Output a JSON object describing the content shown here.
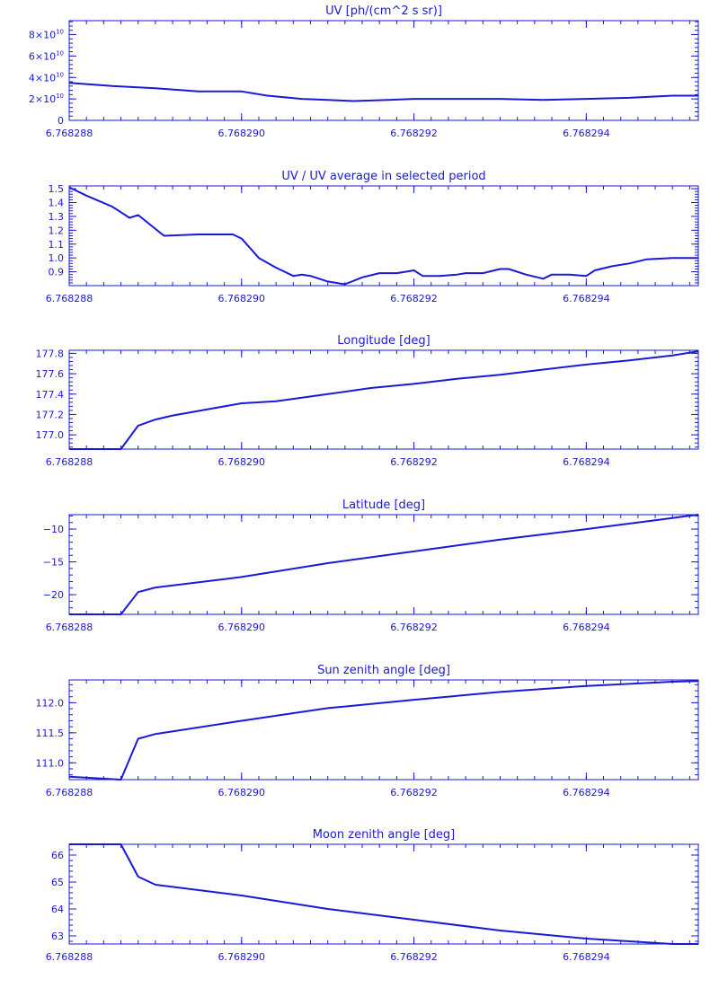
{
  "figure": {
    "color": "#1a1ad6",
    "background": "#ffffff"
  },
  "chart_data": [
    {
      "type": "line",
      "title": "UV [ph/(cm^2 s sr)]",
      "xlabel": "",
      "ylabel": "",
      "xlim": [
        6.768288,
        6.7682953
      ],
      "ylim": [
        0,
        93000000000.0
      ],
      "xticks": [
        {
          "value": 6.768288,
          "label": "6.768288"
        },
        {
          "value": 6.76829,
          "label": "6.768290"
        },
        {
          "value": 6.768292,
          "label": "6.768292"
        },
        {
          "value": 6.768294,
          "label": "6.768294"
        }
      ],
      "yticks": [
        {
          "value": 0,
          "mantissa": "0",
          "exponent": ""
        },
        {
          "value": 20000000000.0,
          "mantissa": "2×10",
          "exponent": "10"
        },
        {
          "value": 40000000000.0,
          "mantissa": "4×10",
          "exponent": "10"
        },
        {
          "value": 60000000000.0,
          "mantissa": "6×10",
          "exponent": "10"
        },
        {
          "value": 80000000000.0,
          "mantissa": "8×10",
          "exponent": "10"
        }
      ],
      "series": [
        {
          "x": [
            6.768288,
            6.7682885,
            6.768289,
            6.7682895,
            6.76829,
            6.7682903,
            6.7682907,
            6.768291,
            6.7682913,
            6.7682917,
            6.768292,
            6.7682925,
            6.768293,
            6.7682935,
            6.768294,
            6.7682945,
            6.768295,
            6.7682953
          ],
          "y": [
            35000000000.0,
            32000000000.0,
            30000000000.0,
            27000000000.0,
            27000000000.0,
            23000000000.0,
            20000000000.0,
            19000000000.0,
            18000000000.0,
            19000000000.0,
            20000000000.0,
            20000000000.0,
            20000000000.0,
            19000000000.0,
            20000000000.0,
            21000000000.0,
            23000000000.0,
            23000000000.0
          ]
        }
      ]
    },
    {
      "type": "line",
      "title": "UV / UV average in selected period",
      "xlabel": "",
      "ylabel": "",
      "xlim": [
        6.768288,
        6.7682953
      ],
      "ylim": [
        0.8,
        1.52
      ],
      "xticks": [
        {
          "value": 6.768288,
          "label": "6.768288"
        },
        {
          "value": 6.76829,
          "label": "6.768290"
        },
        {
          "value": 6.768292,
          "label": "6.768292"
        },
        {
          "value": 6.768294,
          "label": "6.768294"
        }
      ],
      "yticks": [
        {
          "value": 0.9,
          "label": "0.9"
        },
        {
          "value": 1.0,
          "label": "1.0"
        },
        {
          "value": 1.1,
          "label": "1.1"
        },
        {
          "value": 1.2,
          "label": "1.2"
        },
        {
          "value": 1.3,
          "label": "1.3"
        },
        {
          "value": 1.4,
          "label": "1.4"
        },
        {
          "value": 1.5,
          "label": "1.5"
        }
      ],
      "series": [
        {
          "x": [
            6.768288,
            6.7682882,
            6.7682885,
            6.7682887,
            6.7682888,
            6.7682891,
            6.7682895,
            6.7682899,
            6.76829,
            6.7682902,
            6.7682904,
            6.7682906,
            6.7682907,
            6.7682908,
            6.768291,
            6.7682912,
            6.7682914,
            6.7682916,
            6.7682918,
            6.7682919,
            6.768292,
            6.7682921,
            6.7682923,
            6.7682925,
            6.7682926,
            6.7682928,
            6.768293,
            6.7682931,
            6.7682933,
            6.7682935,
            6.7682936,
            6.7682938,
            6.768294,
            6.7682941,
            6.7682943,
            6.7682945,
            6.7682947,
            6.768295,
            6.7682953
          ],
          "y": [
            1.51,
            1.45,
            1.37,
            1.29,
            1.31,
            1.16,
            1.17,
            1.17,
            1.14,
            1.0,
            0.93,
            0.87,
            0.88,
            0.87,
            0.83,
            0.81,
            0.86,
            0.89,
            0.89,
            0.9,
            0.91,
            0.87,
            0.87,
            0.88,
            0.89,
            0.89,
            0.92,
            0.92,
            0.88,
            0.85,
            0.88,
            0.88,
            0.87,
            0.91,
            0.94,
            0.96,
            0.99,
            1.0,
            1.0
          ]
        }
      ]
    },
    {
      "type": "line",
      "title": "Longitude [deg]",
      "xlabel": "",
      "ylabel": "",
      "xlim": [
        6.768288,
        6.7682953
      ],
      "ylim": [
        176.86,
        177.83
      ],
      "xticks": [
        {
          "value": 6.768288,
          "label": "6.768288"
        },
        {
          "value": 6.76829,
          "label": "6.768290"
        },
        {
          "value": 6.768292,
          "label": "6.768292"
        },
        {
          "value": 6.768294,
          "label": "6.768294"
        }
      ],
      "yticks": [
        {
          "value": 177.0,
          "label": "177.0"
        },
        {
          "value": 177.2,
          "label": "177.2"
        },
        {
          "value": 177.4,
          "label": "177.4"
        },
        {
          "value": 177.6,
          "label": "177.6"
        },
        {
          "value": 177.8,
          "label": "177.8"
        }
      ],
      "series": [
        {
          "x": [
            6.768288,
            6.7682886,
            6.7682888,
            6.768289,
            6.7682892,
            6.76829,
            6.7682904,
            6.768291,
            6.7682915,
            6.768292,
            6.7682925,
            6.768293,
            6.7682935,
            6.768294,
            6.7682945,
            6.768295,
            6.7682953
          ],
          "y": [
            176.86,
            176.86,
            177.09,
            177.15,
            177.19,
            177.31,
            177.33,
            177.4,
            177.46,
            177.5,
            177.55,
            177.59,
            177.64,
            177.69,
            177.73,
            177.78,
            177.82
          ]
        }
      ]
    },
    {
      "type": "line",
      "title": "Latitude [deg]",
      "xlabel": "",
      "ylabel": "",
      "xlim": [
        6.768288,
        6.7682953
      ],
      "ylim": [
        -23.0,
        -7.8
      ],
      "xticks": [
        {
          "value": 6.768288,
          "label": "6.768288"
        },
        {
          "value": 6.76829,
          "label": "6.768290"
        },
        {
          "value": 6.768292,
          "label": "6.768292"
        },
        {
          "value": 6.768294,
          "label": "6.768294"
        }
      ],
      "yticks": [
        {
          "value": -20,
          "label": "−20"
        },
        {
          "value": -15,
          "label": "−15"
        },
        {
          "value": -10,
          "label": "−10"
        }
      ],
      "series": [
        {
          "x": [
            6.768288,
            6.7682886,
            6.7682888,
            6.768289,
            6.76829,
            6.768291,
            6.768292,
            6.768293,
            6.768294,
            6.768295,
            6.7682953
          ],
          "y": [
            -23.0,
            -23.0,
            -19.6,
            -18.9,
            -17.3,
            -15.2,
            -13.4,
            -11.6,
            -10.0,
            -8.3,
            -7.8
          ]
        }
      ]
    },
    {
      "type": "line",
      "title": "Sun zenith angle [deg]",
      "xlabel": "",
      "ylabel": "",
      "xlim": [
        6.768288,
        6.7682953
      ],
      "ylim": [
        110.72,
        112.38
      ],
      "xticks": [
        {
          "value": 6.768288,
          "label": "6.768288"
        },
        {
          "value": 6.76829,
          "label": "6.768290"
        },
        {
          "value": 6.768292,
          "label": "6.768292"
        },
        {
          "value": 6.768294,
          "label": "6.768294"
        }
      ],
      "yticks": [
        {
          "value": 111.0,
          "label": "111.0"
        },
        {
          "value": 111.5,
          "label": "111.5"
        },
        {
          "value": 112.0,
          "label": "112.0"
        }
      ],
      "series": [
        {
          "x": [
            6.768288,
            6.7682886,
            6.7682888,
            6.768289,
            6.76829,
            6.768291,
            6.768292,
            6.768293,
            6.768294,
            6.768295,
            6.7682953
          ],
          "y": [
            110.77,
            110.72,
            111.4,
            111.48,
            111.7,
            111.91,
            112.05,
            112.18,
            112.28,
            112.35,
            112.36
          ]
        }
      ]
    },
    {
      "type": "line",
      "title": "Moon zenith angle [deg]",
      "xlabel": "",
      "ylabel": "",
      "xlim": [
        6.768288,
        6.7682953
      ],
      "ylim": [
        62.7,
        66.4
      ],
      "xticks": [
        {
          "value": 6.768288,
          "label": "6.768288"
        },
        {
          "value": 6.76829,
          "label": "6.768290"
        },
        {
          "value": 6.768292,
          "label": "6.768292"
        },
        {
          "value": 6.768294,
          "label": "6.768294"
        }
      ],
      "yticks": [
        {
          "value": 63,
          "label": "63"
        },
        {
          "value": 64,
          "label": "64"
        },
        {
          "value": 65,
          "label": "65"
        },
        {
          "value": 66,
          "label": "66"
        }
      ],
      "series": [
        {
          "x": [
            6.768288,
            6.7682886,
            6.7682888,
            6.768289,
            6.76829,
            6.768291,
            6.768292,
            6.768293,
            6.768294,
            6.768295,
            6.7682953
          ],
          "y": [
            66.4,
            66.4,
            65.2,
            64.9,
            64.5,
            64.0,
            63.6,
            63.2,
            62.9,
            62.7,
            62.7
          ]
        }
      ]
    }
  ]
}
